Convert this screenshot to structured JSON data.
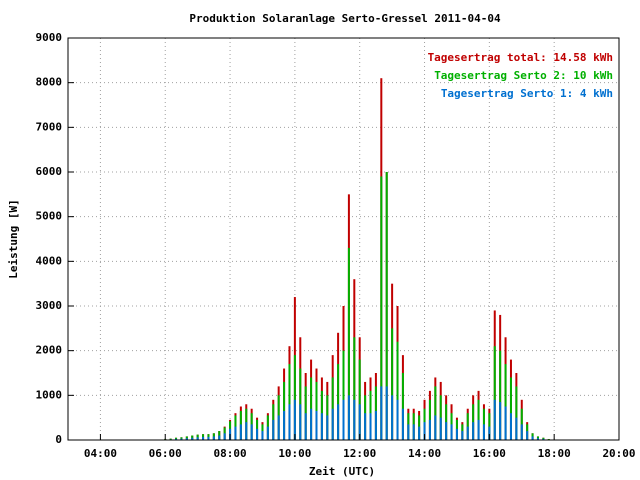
{
  "chart_data": {
    "type": "bar",
    "title": "Produktion Solaranlage Serto-Gressel 2011-04-04",
    "x_label": "Zeit (UTC)",
    "y_label": "Leistung [W]",
    "legend_position": "upper-right",
    "grid": true,
    "x": [
      "06:00",
      "06:10",
      "06:20",
      "06:30",
      "06:40",
      "06:50",
      "07:00",
      "07:10",
      "07:20",
      "07:30",
      "07:40",
      "07:50",
      "08:00",
      "08:10",
      "08:20",
      "08:30",
      "08:40",
      "08:50",
      "09:00",
      "09:10",
      "09:20",
      "09:30",
      "09:40",
      "09:50",
      "10:00",
      "10:10",
      "10:20",
      "10:30",
      "10:40",
      "10:50",
      "11:00",
      "11:10",
      "11:20",
      "11:30",
      "11:40",
      "11:50",
      "12:00",
      "12:10",
      "12:20",
      "12:30",
      "12:40",
      "12:50",
      "13:00",
      "13:10",
      "13:20",
      "13:30",
      "13:40",
      "13:50",
      "14:00",
      "14:10",
      "14:20",
      "14:30",
      "14:40",
      "14:50",
      "15:00",
      "15:10",
      "15:20",
      "15:30",
      "15:40",
      "15:50",
      "16:00",
      "16:10",
      "16:20",
      "16:30",
      "16:40",
      "16:50",
      "17:00",
      "17:10",
      "17:20",
      "17:30",
      "17:40",
      "17:50"
    ],
    "series": [
      {
        "name": "Tagesertrag total: 14.58 kWh",
        "color": "#c00000",
        "values": [
          20,
          30,
          50,
          60,
          80,
          100,
          120,
          130,
          130,
          150,
          200,
          300,
          450,
          600,
          750,
          800,
          700,
          500,
          400,
          600,
          900,
          1200,
          1600,
          2100,
          3200,
          2300,
          1500,
          1800,
          1600,
          1400,
          1300,
          1900,
          2400,
          3000,
          5500,
          3600,
          2300,
          1300,
          1400,
          1500,
          8100,
          6000,
          3500,
          3000,
          1900,
          700,
          700,
          650,
          900,
          1100,
          1400,
          1300,
          1000,
          800,
          500,
          400,
          700,
          1000,
          1100,
          800,
          700,
          2900,
          2800,
          2300,
          1800,
          1500,
          900,
          400,
          150,
          80,
          50,
          20
        ]
      },
      {
        "name": "Tagesertrag Serto 2: 10 kWh",
        "color": "#00b000",
        "values": [
          20,
          30,
          50,
          60,
          80,
          100,
          120,
          130,
          130,
          150,
          200,
          280,
          420,
          550,
          650,
          700,
          600,
          450,
          350,
          550,
          800,
          1000,
          1300,
          1700,
          1900,
          1600,
          1200,
          1400,
          1300,
          1100,
          1000,
          1400,
          1700,
          2000,
          4300,
          2300,
          1800,
          1000,
          1100,
          1200,
          5900,
          6000,
          2500,
          2200,
          1500,
          600,
          600,
          550,
          700,
          900,
          1200,
          1000,
          800,
          600,
          450,
          350,
          600,
          800,
          900,
          700,
          600,
          2100,
          2000,
          1700,
          1400,
          1200,
          700,
          350,
          150,
          80,
          50,
          20
        ]
      },
      {
        "name": "Tagesertrag Serto 1: 4 kWh",
        "color": "#0070d0",
        "values": [
          10,
          15,
          25,
          30,
          40,
          50,
          60,
          70,
          70,
          80,
          100,
          150,
          250,
          300,
          350,
          400,
          350,
          250,
          200,
          300,
          450,
          550,
          650,
          800,
          900,
          800,
          600,
          700,
          650,
          600,
          550,
          700,
          800,
          900,
          1000,
          900,
          800,
          600,
          600,
          650,
          1200,
          1200,
          1000,
          900,
          700,
          350,
          350,
          300,
          400,
          450,
          550,
          500,
          400,
          350,
          250,
          200,
          300,
          400,
          450,
          350,
          300,
          900,
          850,
          750,
          600,
          500,
          350,
          200,
          80,
          40,
          25,
          10
        ]
      }
    ],
    "xlim": [
      "03:00",
      "20:00"
    ],
    "xticks": [
      "04:00",
      "06:00",
      "08:00",
      "10:00",
      "12:00",
      "14:00",
      "16:00",
      "18:00",
      "20:00"
    ],
    "ylim": [
      0,
      9000
    ],
    "yticks": [
      0,
      1000,
      2000,
      3000,
      4000,
      5000,
      6000,
      7000,
      8000,
      9000
    ]
  }
}
